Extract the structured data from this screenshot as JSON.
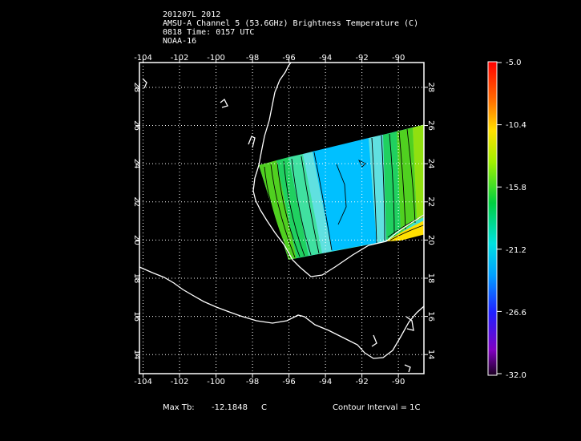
{
  "header": {
    "line1": "201207L 2012",
    "line2": "AMSU-A Channel 5 (53.6GHz) Brightness Temperature (C)",
    "line3": "0818 Time: 0157 UTC",
    "line4": "NOAA-16"
  },
  "map": {
    "lon_labels": [
      "-104",
      "-102",
      "-100",
      "-98",
      "-96",
      "-94",
      "-92",
      "-90"
    ],
    "lat_labels": [
      "28",
      "26",
      "24",
      "22",
      "20",
      "18",
      "16",
      "14"
    ],
    "lon_range": [
      -104.2,
      -88.6
    ],
    "lat_range": [
      13.0,
      29.3
    ],
    "grid_lines": true,
    "coastline_color": "#ffffff",
    "grid_color": "#ffffff",
    "swath_colors": [
      "#00c0ff",
      "#40d0ff",
      "#60e0e0",
      "#40e0a0",
      "#20d060",
      "#50d020",
      "#90e010",
      "#ffe000"
    ]
  },
  "colorbar": {
    "labels": [
      "-5.0",
      "-10.4",
      "-15.8",
      "-21.2",
      "-26.6",
      "-32.0"
    ],
    "max": -5.0,
    "min": -32.0
  },
  "footer": {
    "max_tb_label": "Max Tb:",
    "max_tb_value": "-12.1848",
    "unit": "C",
    "contour_interval": "Contour Interval = 1C"
  }
}
